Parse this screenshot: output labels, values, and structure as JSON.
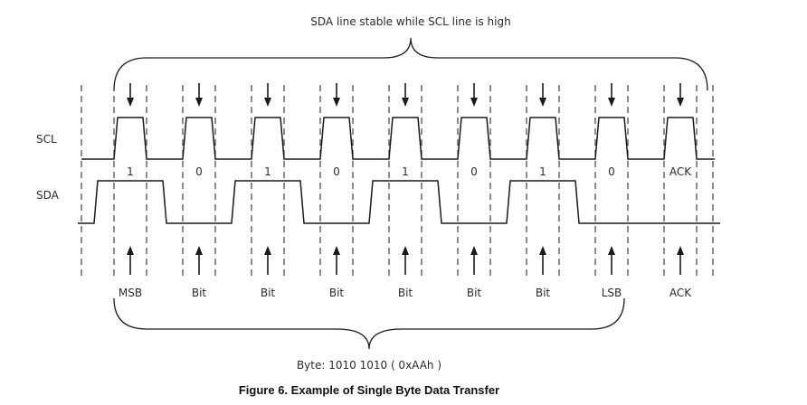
{
  "diagram": {
    "top_note": "SDA line stable while SCL line is high",
    "bottom_note": "Byte: 1010 1010 ( 0xAAh )",
    "caption": "Figure 6. Example of Single Byte Data Transfer",
    "signals": {
      "scl": "SCL",
      "sda": "SDA"
    },
    "bit_values": [
      "1",
      "0",
      "1",
      "0",
      "1",
      "0",
      "1",
      "0",
      "ACK"
    ],
    "bit_labels": [
      "MSB",
      "Bit",
      "Bit",
      "Bit",
      "Bit",
      "Bit",
      "Bit",
      "LSB",
      "ACK"
    ]
  }
}
